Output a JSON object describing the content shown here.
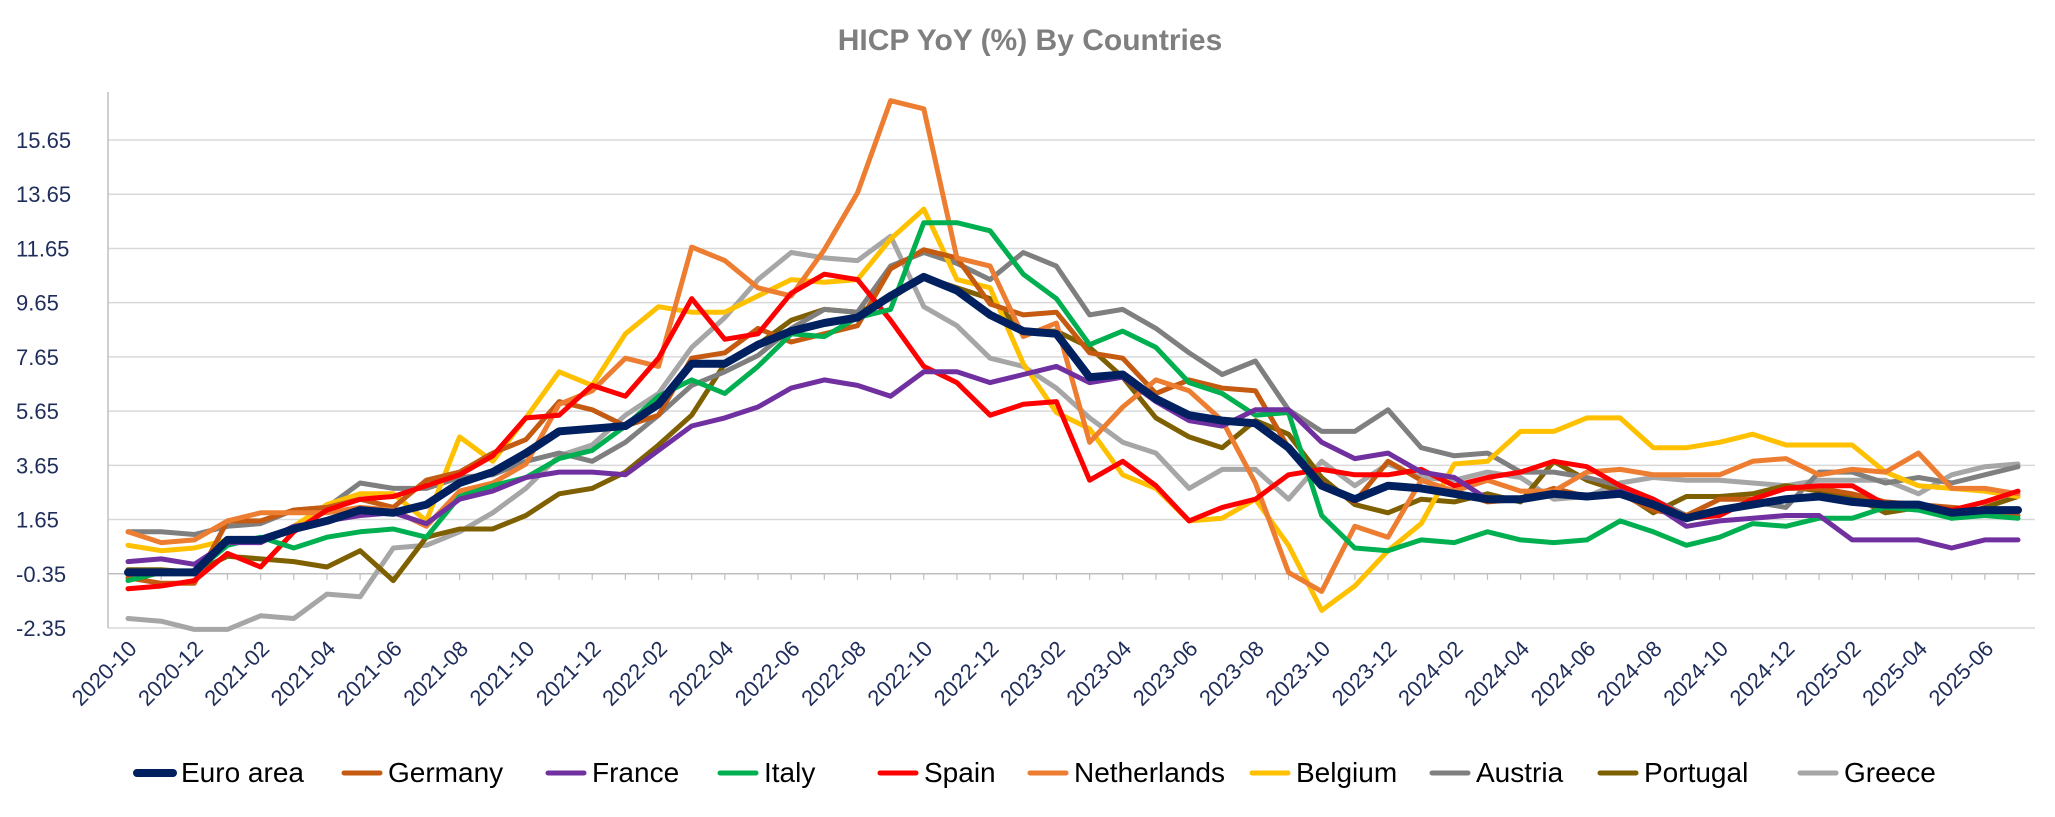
{
  "chart_data": {
    "type": "line",
    "title": "HICP YoY (%) By Countries",
    "xlabel": "",
    "ylabel": "",
    "ylim": [
      -2.35,
      17.5
    ],
    "y_ticks": [
      "-2.35",
      "-0.35",
      "1.65",
      "3.65",
      "5.65",
      "7.65",
      "9.65",
      "11.65",
      "13.65",
      "15.65"
    ],
    "y_tick_values": [
      -2.35,
      -0.35,
      1.65,
      3.65,
      5.65,
      7.65,
      9.65,
      11.65,
      13.65,
      15.65
    ],
    "x_baseline_value": -0.35,
    "x": [
      "2020-10",
      "2020-11",
      "2020-12",
      "2021-01",
      "2021-02",
      "2021-03",
      "2021-04",
      "2021-05",
      "2021-06",
      "2021-07",
      "2021-08",
      "2021-09",
      "2021-10",
      "2021-11",
      "2021-12",
      "2022-01",
      "2022-02",
      "2022-03",
      "2022-04",
      "2022-05",
      "2022-06",
      "2022-07",
      "2022-08",
      "2022-09",
      "2022-10",
      "2022-11",
      "2022-12",
      "2023-01",
      "2023-02",
      "2023-03",
      "2023-04",
      "2023-05",
      "2023-06",
      "2023-07",
      "2023-08",
      "2023-09",
      "2023-10",
      "2023-11",
      "2023-12",
      "2024-01",
      "2024-02",
      "2024-03",
      "2024-04",
      "2024-05",
      "2024-06",
      "2024-07",
      "2024-08",
      "2024-09",
      "2024-10",
      "2024-11",
      "2024-12",
      "2025-01",
      "2025-02",
      "2025-03",
      "2025-04",
      "2025-05",
      "2025-06",
      "2025-07"
    ],
    "x_tick_labels": [
      "2020-10",
      "2020-12",
      "2021-02",
      "2021-04",
      "2021-06",
      "2021-08",
      "2021-10",
      "2021-12",
      "2022-02",
      "2022-04",
      "2022-06",
      "2022-08",
      "2022-10",
      "2022-12",
      "2023-02",
      "2023-04",
      "2023-06",
      "2023-08",
      "2023-10",
      "2023-12",
      "2024-02",
      "2024-04",
      "2024-06",
      "2024-08",
      "2024-10",
      "2024-12",
      "2025-02",
      "2025-04",
      "2025-06"
    ],
    "grid": "horizontal",
    "legend_position": "bottom",
    "series": [
      {
        "name": "Greece",
        "color": "#a6a6a6",
        "width": 5,
        "values": [
          -2.0,
          -2.1,
          -2.4,
          -2.4,
          -1.9,
          -2.0,
          -1.1,
          -1.2,
          0.6,
          0.7,
          1.2,
          1.9,
          2.8,
          4.0,
          4.4,
          5.5,
          6.3,
          8.0,
          9.1,
          10.5,
          11.5,
          11.3,
          11.2,
          12.1,
          9.5,
          8.8,
          7.6,
          7.3,
          6.5,
          5.4,
          4.5,
          4.1,
          2.8,
          3.5,
          3.5,
          2.4,
          3.8,
          2.9,
          3.7,
          3.2,
          3.1,
          3.4,
          3.2,
          2.4,
          2.5,
          3.0,
          3.2,
          3.1,
          3.1,
          3.0,
          2.9,
          3.1,
          3.1,
          3.1,
          2.6,
          3.3,
          3.6,
          3.7
        ]
      },
      {
        "name": "Portugal",
        "color": "#7f6000",
        "width": 5,
        "values": [
          -0.2,
          -0.2,
          -0.3,
          0.3,
          0.2,
          0.1,
          -0.1,
          0.5,
          -0.6,
          1.0,
          1.3,
          1.3,
          1.8,
          2.6,
          2.8,
          3.4,
          4.4,
          5.5,
          7.4,
          8.1,
          9.0,
          9.4,
          9.3,
          9.8,
          10.6,
          10.2,
          9.8,
          8.6,
          8.6,
          8.0,
          6.9,
          5.4,
          4.7,
          4.3,
          5.3,
          4.8,
          3.2,
          2.2,
          1.9,
          2.4,
          2.3,
          2.6,
          2.3,
          3.8,
          3.1,
          2.7,
          1.9,
          2.5,
          2.5,
          2.6,
          2.9,
          2.7,
          2.5,
          1.9,
          2.1,
          1.7,
          2.1,
          2.5
        ]
      },
      {
        "name": "Austria",
        "color": "#7f7f7f",
        "width": 5,
        "values": [
          1.2,
          1.2,
          1.1,
          1.4,
          1.5,
          2.0,
          2.1,
          3.0,
          2.8,
          2.8,
          3.2,
          3.3,
          3.8,
          4.1,
          3.8,
          4.5,
          5.5,
          6.6,
          7.1,
          7.7,
          8.7,
          9.4,
          9.3,
          11.0,
          11.5,
          11.1,
          10.5,
          11.5,
          11.0,
          9.2,
          9.4,
          8.7,
          7.8,
          7.0,
          7.5,
          5.7,
          4.9,
          4.9,
          5.7,
          4.3,
          4.0,
          4.1,
          3.4,
          3.4,
          3.2,
          2.9,
          2.4,
          1.8,
          2.0,
          2.3,
          2.1,
          3.4,
          3.4,
          3.0,
          3.2,
          3.0,
          3.3,
          3.6
        ]
      },
      {
        "name": "Belgium",
        "color": "#ffc000",
        "width": 5,
        "values": [
          0.7,
          0.5,
          0.6,
          0.9,
          0.8,
          1.4,
          2.2,
          2.6,
          2.6,
          1.6,
          4.7,
          3.8,
          5.4,
          7.1,
          6.6,
          8.5,
          9.5,
          9.3,
          9.3,
          9.9,
          10.5,
          10.4,
          10.5,
          12.0,
          13.1,
          10.5,
          10.2,
          7.4,
          5.6,
          5.0,
          3.3,
          2.8,
          1.6,
          1.7,
          2.4,
          0.7,
          -1.7,
          -0.8,
          0.5,
          1.5,
          3.7,
          3.8,
          4.9,
          4.9,
          5.4,
          5.4,
          4.3,
          4.3,
          4.5,
          4.8,
          4.4,
          4.4,
          4.4,
          3.4,
          2.9,
          2.8,
          2.7,
          2.5
        ]
      },
      {
        "name": "Germany",
        "color": "#c55a11",
        "width": 5,
        "values": [
          -0.5,
          -0.7,
          -0.7,
          1.6,
          1.6,
          2.0,
          2.1,
          2.4,
          2.1,
          3.1,
          3.4,
          4.1,
          4.6,
          6.0,
          5.7,
          5.1,
          5.5,
          7.6,
          7.8,
          8.7,
          8.2,
          8.5,
          8.8,
          10.9,
          11.6,
          11.3,
          9.6,
          9.2,
          9.3,
          7.8,
          7.6,
          6.3,
          6.8,
          6.5,
          6.4,
          4.3,
          3.0,
          2.3,
          3.8,
          3.1,
          2.7,
          2.3,
          2.4,
          2.8,
          2.5,
          2.6,
          2.0,
          1.8,
          2.4,
          2.4,
          2.8,
          2.8,
          2.6,
          2.3,
          2.2,
          2.1,
          2.0,
          1.8
        ]
      },
      {
        "name": "Netherlands",
        "color": "#ed7d31",
        "width": 5,
        "values": [
          1.2,
          0.8,
          0.9,
          1.6,
          1.9,
          1.9,
          1.9,
          2.1,
          2.0,
          1.4,
          2.7,
          3.0,
          3.7,
          5.9,
          6.4,
          7.6,
          7.3,
          11.7,
          11.2,
          10.2,
          9.9,
          11.6,
          13.7,
          17.1,
          16.8,
          11.3,
          11.0,
          8.4,
          8.9,
          4.5,
          5.8,
          6.8,
          6.4,
          5.3,
          3.0,
          -0.3,
          -1.0,
          1.4,
          1.0,
          3.1,
          2.7,
          3.1,
          2.7,
          2.7,
          3.4,
          3.5,
          3.3,
          3.3,
          3.3,
          3.8,
          3.9,
          3.3,
          3.5,
          3.4,
          4.1,
          2.8,
          2.8,
          2.6
        ]
      },
      {
        "name": "Spain",
        "color": "#ff0000",
        "width": 5,
        "values": [
          -0.9,
          -0.8,
          -0.6,
          0.4,
          -0.1,
          1.2,
          2.0,
          2.4,
          2.5,
          2.9,
          3.3,
          4.0,
          5.4,
          5.5,
          6.6,
          6.2,
          7.6,
          9.8,
          8.3,
          8.5,
          10.0,
          10.7,
          10.5,
          9.0,
          7.3,
          6.7,
          5.5,
          5.9,
          6.0,
          3.1,
          3.8,
          2.9,
          1.6,
          2.1,
          2.4,
          3.3,
          3.5,
          3.3,
          3.3,
          3.5,
          2.9,
          3.2,
          3.4,
          3.8,
          3.6,
          2.9,
          2.4,
          1.7,
          1.8,
          2.4,
          2.8,
          2.9,
          2.9,
          2.2,
          2.2,
          2.0,
          2.3,
          2.7
        ]
      },
      {
        "name": "Italy",
        "color": "#00b050",
        "width": 5,
        "values": [
          -0.6,
          -0.3,
          -0.3,
          0.7,
          1.0,
          0.6,
          1.0,
          1.2,
          1.3,
          1.0,
          2.5,
          2.9,
          3.2,
          3.9,
          4.2,
          5.1,
          6.2,
          6.8,
          6.3,
          7.3,
          8.5,
          8.4,
          9.1,
          9.4,
          12.6,
          12.6,
          12.3,
          10.7,
          9.8,
          8.1,
          8.6,
          8.0,
          6.7,
          6.3,
          5.5,
          5.6,
          1.8,
          0.6,
          0.5,
          0.9,
          0.8,
          1.2,
          0.9,
          0.8,
          0.9,
          1.6,
          1.2,
          0.7,
          1.0,
          1.5,
          1.4,
          1.7,
          1.7,
          2.1,
          2.0,
          1.7,
          1.8,
          1.7
        ]
      },
      {
        "name": "France",
        "color": "#7030a0",
        "width": 5,
        "values": [
          0.1,
          0.2,
          0.0,
          0.8,
          0.8,
          1.4,
          1.6,
          1.8,
          1.9,
          1.5,
          2.4,
          2.7,
          3.2,
          3.4,
          3.4,
          3.3,
          4.2,
          5.1,
          5.4,
          5.8,
          6.5,
          6.8,
          6.6,
          6.2,
          7.1,
          7.1,
          6.7,
          7.0,
          7.3,
          6.7,
          6.9,
          6.0,
          5.3,
          5.1,
          5.7,
          5.7,
          4.5,
          3.9,
          4.1,
          3.4,
          3.2,
          2.4,
          2.4,
          2.6,
          2.5,
          2.7,
          2.2,
          1.4,
          1.6,
          1.7,
          1.8,
          1.8,
          0.9,
          0.9,
          0.9,
          0.6,
          0.9,
          0.9
        ]
      },
      {
        "name": "Euro area",
        "color": "#002060",
        "width": 8,
        "values": [
          -0.3,
          -0.3,
          -0.3,
          0.9,
          0.9,
          1.3,
          1.6,
          2.0,
          1.9,
          2.2,
          3.0,
          3.4,
          4.1,
          4.9,
          5.0,
          5.1,
          5.9,
          7.4,
          7.4,
          8.1,
          8.6,
          8.9,
          9.1,
          9.9,
          10.6,
          10.1,
          9.2,
          8.6,
          8.5,
          6.9,
          7.0,
          6.1,
          5.5,
          5.3,
          5.2,
          4.3,
          2.9,
          2.4,
          2.9,
          2.8,
          2.6,
          2.4,
          2.4,
          2.6,
          2.5,
          2.6,
          2.2,
          1.7,
          2.0,
          2.2,
          2.4,
          2.5,
          2.3,
          2.2,
          2.2,
          1.9,
          2.0,
          2.0
        ]
      }
    ],
    "legend_order": [
      "Euro area",
      "Germany",
      "France",
      "Italy",
      "Spain",
      "Netherlands",
      "Belgium",
      "Austria",
      "Portugal",
      "Greece"
    ]
  }
}
